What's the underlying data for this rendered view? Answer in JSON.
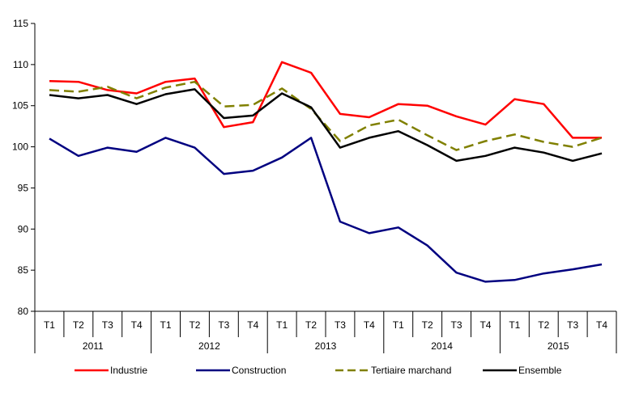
{
  "chart_data": {
    "type": "line",
    "title": "",
    "xlabel": "",
    "ylabel": "",
    "ylim": [
      80,
      115
    ],
    "y_ticks": [
      80,
      85,
      90,
      95,
      100,
      105,
      110,
      115
    ],
    "grid": false,
    "legend_position": "bottom",
    "categories": [
      "T1",
      "T2",
      "T3",
      "T4",
      "T1",
      "T2",
      "T3",
      "T4",
      "T1",
      "T2",
      "T3",
      "T4",
      "T1",
      "T2",
      "T3",
      "T4",
      "T1",
      "T2",
      "T3",
      "T4"
    ],
    "year_groups": [
      {
        "label": "2011",
        "span": 4
      },
      {
        "label": "2012",
        "span": 4
      },
      {
        "label": "2013",
        "span": 4
      },
      {
        "label": "2014",
        "span": 4
      },
      {
        "label": "2015",
        "span": 4
      }
    ],
    "series": [
      {
        "name": "Industrie",
        "color": "#ff0000",
        "dash": "solid",
        "values": [
          108.0,
          107.9,
          106.9,
          106.5,
          107.9,
          108.3,
          102.4,
          103.0,
          110.3,
          109.0,
          104.0,
          103.6,
          105.2,
          105.0,
          103.7,
          102.7,
          105.8,
          105.2,
          101.1,
          101.1
        ]
      },
      {
        "name": "Construction",
        "color": "#000080",
        "dash": "solid",
        "values": [
          101.0,
          98.9,
          99.9,
          99.4,
          101.1,
          99.9,
          96.7,
          97.1,
          98.7,
          101.1,
          90.9,
          89.5,
          90.2,
          88.0,
          84.7,
          83.6,
          83.8,
          84.6,
          85.1,
          85.7
        ]
      },
      {
        "name": "Tertiaire marchand",
        "color": "#808000",
        "dash": "dashed",
        "values": [
          106.9,
          106.7,
          107.3,
          105.9,
          107.2,
          107.9,
          104.9,
          105.1,
          107.1,
          104.6,
          100.7,
          102.6,
          103.3,
          101.4,
          99.6,
          100.7,
          101.5,
          100.6,
          100.0,
          101.1
        ]
      },
      {
        "name": "Ensemble",
        "color": "#000000",
        "dash": "solid",
        "values": [
          106.3,
          105.9,
          106.3,
          105.2,
          106.4,
          107.0,
          103.5,
          103.8,
          106.5,
          104.8,
          99.9,
          101.1,
          101.9,
          100.2,
          98.3,
          98.9,
          99.9,
          99.3,
          98.3,
          99.2
        ]
      }
    ]
  }
}
